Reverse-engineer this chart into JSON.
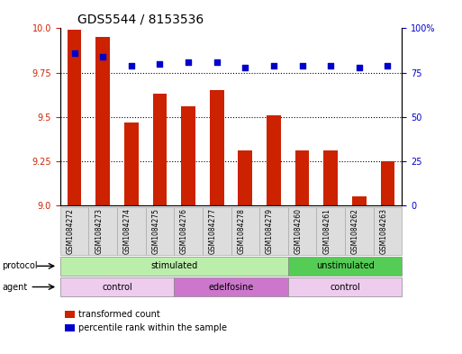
{
  "title": "GDS5544 / 8153536",
  "samples": [
    "GSM1084272",
    "GSM1084273",
    "GSM1084274",
    "GSM1084275",
    "GSM1084276",
    "GSM1084277",
    "GSM1084278",
    "GSM1084279",
    "GSM1084260",
    "GSM1084261",
    "GSM1084262",
    "GSM1084263"
  ],
  "bar_values": [
    9.99,
    9.95,
    9.47,
    9.63,
    9.56,
    9.65,
    9.31,
    9.51,
    9.31,
    9.31,
    9.05,
    9.25
  ],
  "percentile_values": [
    86,
    84,
    79,
    80,
    81,
    81,
    78,
    79,
    79,
    79,
    78,
    79
  ],
  "ylim_left": [
    9.0,
    10.0
  ],
  "ylim_right": [
    0,
    100
  ],
  "yticks_left": [
    9.0,
    9.25,
    9.5,
    9.75,
    10.0
  ],
  "yticks_right": [
    0,
    25,
    50,
    75,
    100
  ],
  "bar_color": "#cc2200",
  "dot_color": "#0000cc",
  "bar_width": 0.5,
  "protocol_groups": [
    {
      "label": "stimulated",
      "start": 0,
      "end": 7,
      "color": "#bbeeaa"
    },
    {
      "label": "unstimulated",
      "start": 8,
      "end": 11,
      "color": "#55cc55"
    }
  ],
  "agent_groups": [
    {
      "label": "control",
      "start": 0,
      "end": 3,
      "color": "#eeccee"
    },
    {
      "label": "edelfosine",
      "start": 4,
      "end": 7,
      "color": "#cc77cc"
    },
    {
      "label": "control",
      "start": 8,
      "end": 11,
      "color": "#eeccee"
    }
  ],
  "legend_items": [
    {
      "label": "transformed count",
      "color": "#cc2200"
    },
    {
      "label": "percentile rank within the sample",
      "color": "#0000cc"
    }
  ],
  "protocol_label": "protocol",
  "agent_label": "agent",
  "title_fontsize": 10,
  "tick_fontsize": 7,
  "grid_color": "#000000",
  "bg_color": "#ffffff",
  "left_axis_color": "#cc2200",
  "right_axis_color": "#0000cc"
}
